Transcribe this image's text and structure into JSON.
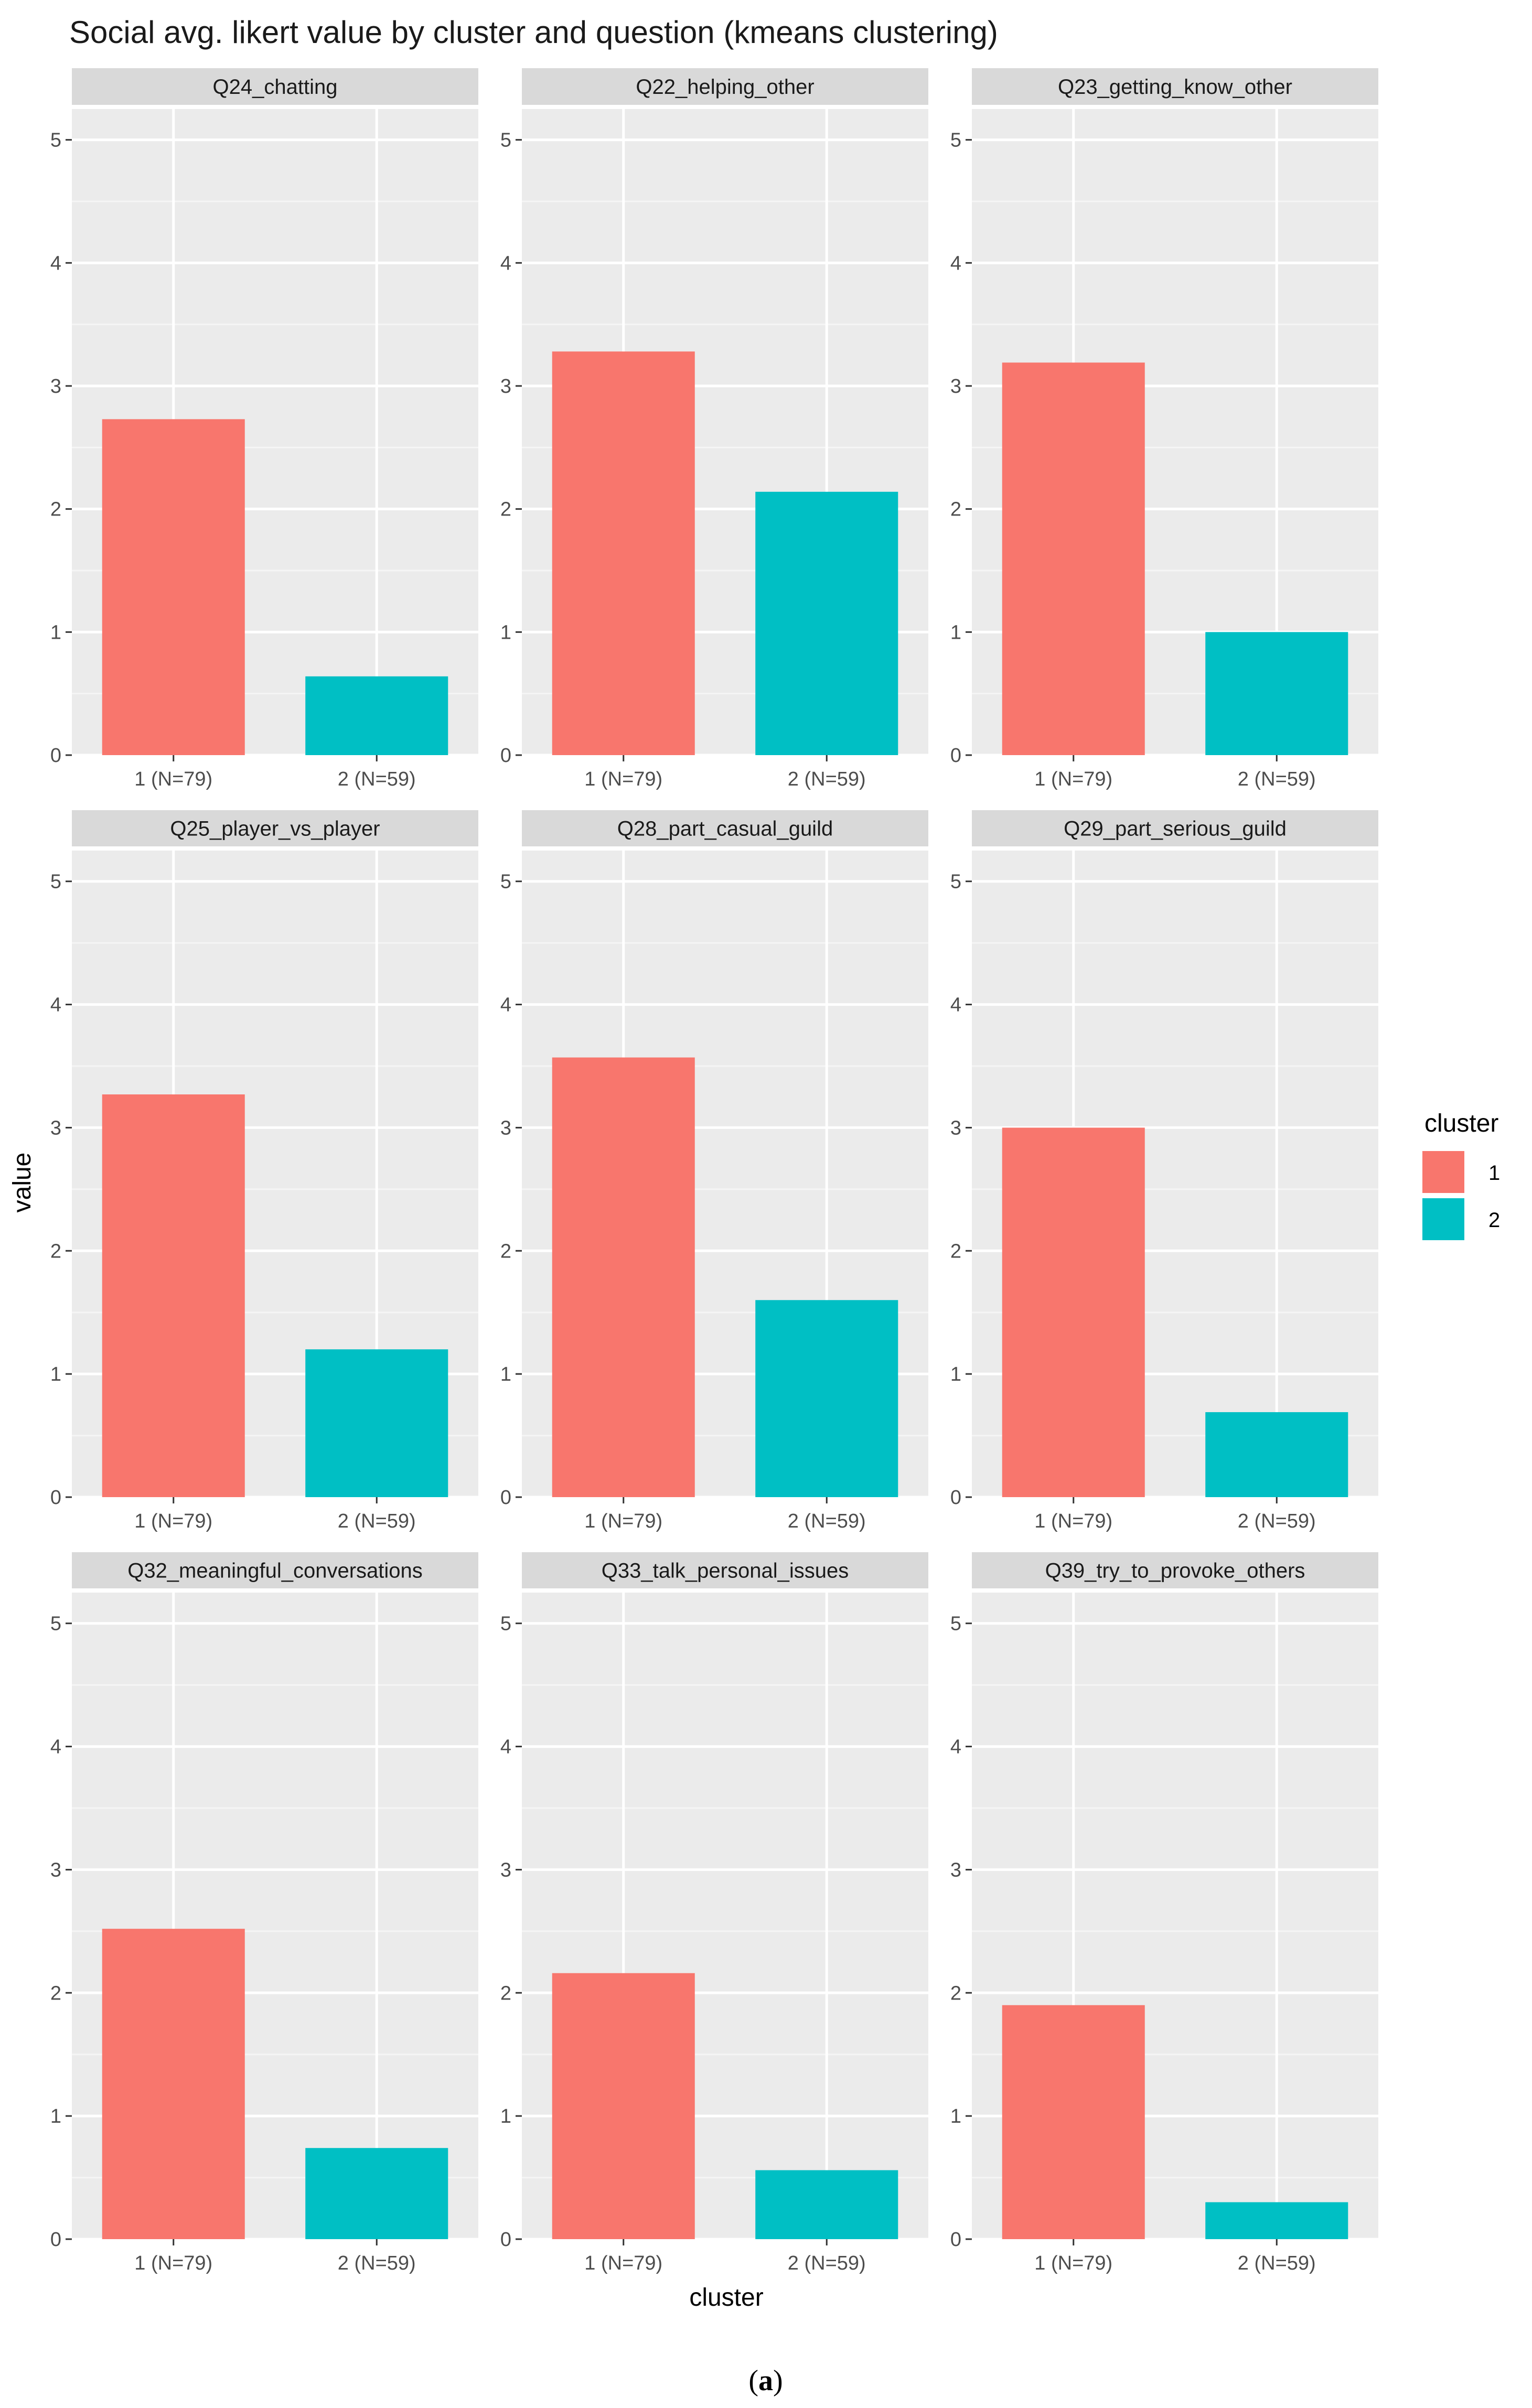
{
  "figure_caption_open": "(",
  "figure_caption_letter": "a",
  "figure_caption_close": ")",
  "legend": {
    "title": "cluster",
    "entries": [
      {
        "label": "1",
        "color": "#F8766D"
      },
      {
        "label": "2",
        "color": "#00BFC4"
      }
    ]
  },
  "chart_data": {
    "type": "bar",
    "title": "Social avg. likert value by cluster and question (kmeans clustering)",
    "xlabel": "cluster",
    "ylabel": "value",
    "ylim": [
      0,
      5.25
    ],
    "yticks": [
      "0",
      "1",
      "2",
      "3",
      "4",
      "5"
    ],
    "categories": [
      "1 (N=79)",
      "2 (N=59)"
    ],
    "colors": [
      "#F8766D",
      "#00BFC4"
    ],
    "grid": true,
    "legend_position": "right",
    "facets": [
      {
        "label": "Q24_chatting",
        "values": [
          2.73,
          0.64
        ]
      },
      {
        "label": "Q22_helping_other",
        "values": [
          3.28,
          2.14
        ]
      },
      {
        "label": "Q23_getting_know_other",
        "values": [
          3.19,
          1.0
        ]
      },
      {
        "label": "Q25_player_vs_player",
        "values": [
          3.27,
          1.2
        ]
      },
      {
        "label": "Q28_part_casual_guild",
        "values": [
          3.57,
          1.6
        ]
      },
      {
        "label": "Q29_part_serious_guild",
        "values": [
          3.0,
          0.69
        ]
      },
      {
        "label": "Q32_meaningful_conversations",
        "values": [
          2.52,
          0.74
        ]
      },
      {
        "label": "Q33_talk_personal_issues",
        "values": [
          2.16,
          0.56
        ]
      },
      {
        "label": "Q39_try_to_provoke_others",
        "values": [
          1.9,
          0.3
        ]
      }
    ]
  }
}
